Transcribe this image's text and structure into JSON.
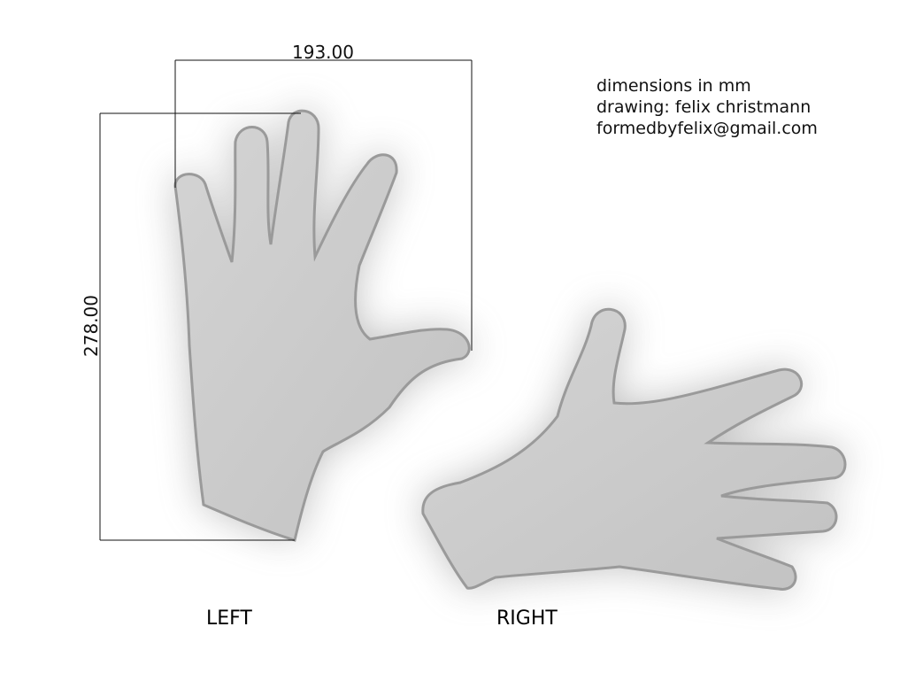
{
  "notes": {
    "units": "dimensions in mm",
    "drawing_credit": "drawing: felix christmann",
    "email": "formedbyfelix@gmail.com"
  },
  "dimensions": {
    "width": "193.00",
    "height": "278.00"
  },
  "labels": {
    "left": "LEFT",
    "right": "RIGHT"
  },
  "colors": {
    "hand_fill": "#c9c9c9",
    "hand_edge": "#9a9a9a",
    "dimension_line": "#111111",
    "background": "#ffffff"
  }
}
